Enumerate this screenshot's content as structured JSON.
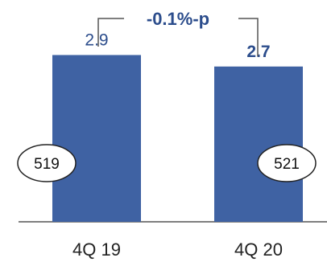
{
  "chart_data": {
    "type": "bar",
    "title": "",
    "xlabel": "",
    "ylabel": "",
    "categories": [
      "4Q 19",
      "4Q 20"
    ],
    "series": [
      {
        "values": [
          2.9,
          2.7
        ]
      }
    ],
    "value_labels": [
      "2.9",
      "2.7"
    ],
    "value_label_bold": [
      false,
      true
    ],
    "bubble_labels": [
      "519",
      "521"
    ],
    "change_annotation": "-0.1%-p",
    "ylim": [
      0,
      3.2
    ],
    "grid": false,
    "legend": "none",
    "colors": {
      "bar": "#3f62a3",
      "value_text": "#2c4d8c",
      "annotation_text": "#2c4d8c",
      "bracket": "#555555",
      "axis": "#333333",
      "category_text": "#222222",
      "bubble_border": "#222222",
      "bubble_fill": "#ffffff"
    }
  }
}
